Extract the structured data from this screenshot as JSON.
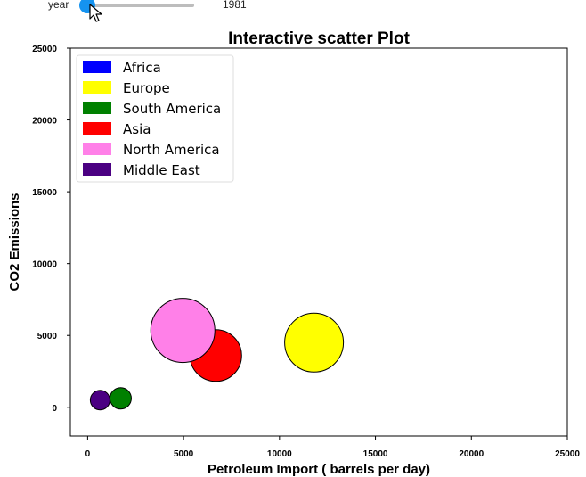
{
  "slider": {
    "label": "year",
    "value": "1981",
    "position": 0.0
  },
  "chart_data": {
    "type": "scatter",
    "title": "Interactive scatter Plot",
    "xlabel": "Petroleum Import ( barrels per day)",
    "ylabel": "CO2 Emissions",
    "xlim": [
      -900,
      25000
    ],
    "ylim": [
      -2000,
      25000
    ],
    "xticks": [
      0,
      5000,
      10000,
      15000,
      20000,
      25000
    ],
    "yticks": [
      0,
      5000,
      10000,
      15000,
      20000,
      25000
    ],
    "legend_position": "top-left",
    "grid": false,
    "series": [
      {
        "name": "Africa",
        "color": "#0000ff",
        "points": []
      },
      {
        "name": "Europe",
        "color": "#ffff00",
        "points": [
          {
            "x": 11800,
            "y": 4500,
            "size": 33
          }
        ]
      },
      {
        "name": "South America",
        "color": "#008000",
        "points": [
          {
            "x": 1720,
            "y": 620,
            "size": 12
          }
        ]
      },
      {
        "name": "Asia",
        "color": "#ff0000",
        "points": [
          {
            "x": 6680,
            "y": 3600,
            "size": 29
          }
        ]
      },
      {
        "name": "North America",
        "color": "#ff80e8",
        "points": [
          {
            "x": 4960,
            "y": 5350,
            "size": 36
          }
        ]
      },
      {
        "name": "Middle East",
        "color": "#4b0082",
        "points": [
          {
            "x": 650,
            "y": 500,
            "size": 11
          }
        ]
      }
    ]
  }
}
